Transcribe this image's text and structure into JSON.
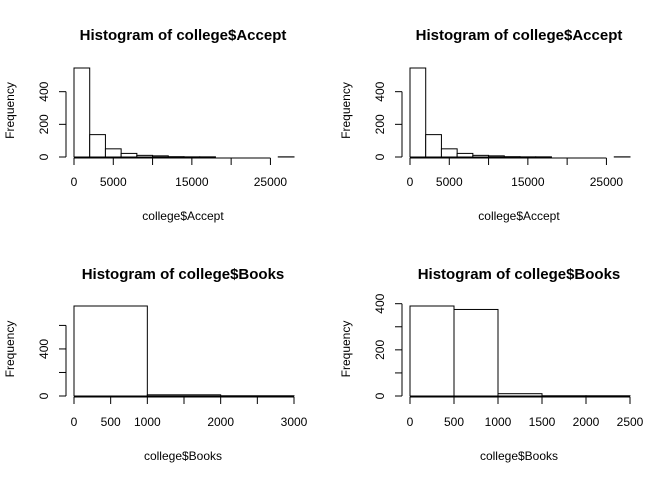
{
  "chart_data": [
    {
      "type": "bar",
      "title": "Histogram of college$Accept",
      "xlabel": "college$Accept",
      "ylabel": "Frequency",
      "bin_edges": [
        0,
        2000,
        4000,
        6000,
        8000,
        10000,
        12000,
        14000,
        16000,
        18000,
        20000,
        22000,
        24000,
        26000,
        28000
      ],
      "values": [
        545,
        137,
        50,
        22,
        10,
        7,
        2,
        1,
        1,
        0,
        0,
        0,
        0,
        1
      ],
      "xlim": [
        0,
        28000
      ],
      "ylim": [
        0,
        545
      ],
      "x_ticks": [
        0,
        5000,
        15000,
        25000
      ],
      "x_tick_labels": [
        "0",
        "5000",
        "15000",
        "25000"
      ],
      "x_minor_ticks": [
        10000,
        20000
      ],
      "y_ticks": [
        0,
        200,
        400
      ],
      "y_tick_labels": [
        "0",
        "200",
        "400"
      ]
    },
    {
      "type": "bar",
      "title": "Histogram of college$Accept",
      "xlabel": "college$Accept",
      "ylabel": "Frequency",
      "bin_edges": [
        0,
        2000,
        4000,
        6000,
        8000,
        10000,
        12000,
        14000,
        16000,
        18000,
        20000,
        22000,
        24000,
        26000,
        28000
      ],
      "values": [
        545,
        137,
        50,
        22,
        10,
        7,
        2,
        1,
        1,
        0,
        0,
        0,
        0,
        1
      ],
      "xlim": [
        0,
        28000
      ],
      "ylim": [
        0,
        545
      ],
      "x_ticks": [
        0,
        5000,
        15000,
        25000
      ],
      "x_tick_labels": [
        "0",
        "5000",
        "15000",
        "25000"
      ],
      "x_minor_ticks": [
        10000,
        20000
      ],
      "y_ticks": [
        0,
        200,
        400
      ],
      "y_tick_labels": [
        "0",
        "200",
        "400"
      ]
    },
    {
      "type": "bar",
      "title": "Histogram of college$Books",
      "xlabel": "college$Books",
      "ylabel": "Frequency",
      "bin_edges": [
        0,
        1000,
        2000,
        3000
      ],
      "values": [
        765,
        10,
        2
      ],
      "xlim": [
        0,
        3000
      ],
      "ylim": [
        0,
        765
      ],
      "x_ticks": [
        0,
        500,
        1000,
        2000,
        3000
      ],
      "x_tick_labels": [
        "0",
        "500",
        "1000",
        "2000",
        "3000"
      ],
      "x_minor_ticks": [
        1500,
        2500
      ],
      "y_ticks": [
        0,
        400
      ],
      "y_tick_labels": [
        "0",
        "400"
      ],
      "y_minor_ticks": [
        200,
        600
      ]
    },
    {
      "type": "bar",
      "title": "Histogram of college$Books",
      "xlabel": "college$Books",
      "ylabel": "Frequency",
      "bin_edges": [
        0,
        500,
        1000,
        1500,
        2000,
        2500
      ],
      "values": [
        390,
        375,
        10,
        1,
        1
      ],
      "xlim": [
        0,
        2500
      ],
      "ylim": [
        0,
        390
      ],
      "x_ticks": [
        0,
        500,
        1000,
        1500,
        2000,
        2500
      ],
      "x_tick_labels": [
        "0",
        "500",
        "1000",
        "1500",
        "2000",
        "2500"
      ],
      "y_ticks": [
        0,
        200,
        400
      ],
      "y_tick_labels": [
        "0",
        "200",
        "400"
      ],
      "y_minor_ticks": [
        100,
        300
      ]
    }
  ]
}
